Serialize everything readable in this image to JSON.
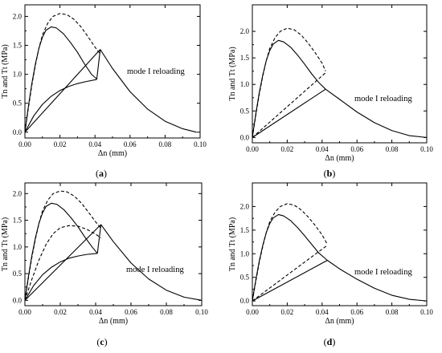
{
  "figure": {
    "caption_labels": [
      "(a)",
      "(b)",
      "(c)",
      "(d)"
    ]
  },
  "chart_data": [
    {
      "type": "line",
      "panel": "(a)",
      "xlabel": "Δn (mm)",
      "ylabel": "Tn and Tt (MPa)",
      "xlim": [
        0,
        0.1
      ],
      "ylim": [
        -0.1,
        2.2
      ],
      "x_ticks": [
        "0.00",
        "0.02",
        "0.04",
        "0.06",
        "0.08",
        "0.10"
      ],
      "y_ticks": [
        "0.0",
        "0.5",
        "1.0",
        "1.5",
        "2.0"
      ],
      "annotation": "mode I reloading",
      "series": [
        {
          "style": "solid",
          "points": [
            [
              0,
              0
            ],
            [
              0.002,
              0.45
            ],
            [
              0.004,
              0.85
            ],
            [
              0.006,
              1.18
            ],
            [
              0.008,
              1.45
            ],
            [
              0.01,
              1.64
            ],
            [
              0.012,
              1.76
            ],
            [
              0.015,
              1.82
            ],
            [
              0.018,
              1.8
            ],
            [
              0.022,
              1.7
            ],
            [
              0.026,
              1.55
            ],
            [
              0.03,
              1.38
            ],
            [
              0.034,
              1.18
            ],
            [
              0.038,
              1.0
            ],
            [
              0.041,
              0.92
            ]
          ]
        },
        {
          "style": "solid",
          "points": [
            [
              0,
              0
            ],
            [
              0.005,
              0.28
            ],
            [
              0.01,
              0.48
            ],
            [
              0.015,
              0.62
            ],
            [
              0.02,
              0.72
            ],
            [
              0.025,
              0.79
            ],
            [
              0.03,
              0.84
            ],
            [
              0.035,
              0.875
            ],
            [
              0.041,
              0.91
            ]
          ]
        },
        {
          "style": "solid",
          "points": [
            [
              0,
              0
            ],
            [
              0.043,
              1.43
            ]
          ]
        },
        {
          "style": "solid",
          "points": [
            [
              0.041,
              0.91
            ],
            [
              0.043,
              1.43
            ]
          ]
        },
        {
          "style": "solid",
          "points": [
            [
              0.043,
              1.43
            ],
            [
              0.05,
              1.1
            ],
            [
              0.06,
              0.7
            ],
            [
              0.07,
              0.4
            ],
            [
              0.08,
              0.19
            ],
            [
              0.09,
              0.06
            ],
            [
              0.098,
              0.0
            ]
          ]
        },
        {
          "style": "dashed",
          "points": [
            [
              0,
              0
            ],
            [
              0.002,
              0.42
            ],
            [
              0.004,
              0.82
            ],
            [
              0.006,
              1.16
            ],
            [
              0.008,
              1.45
            ],
            [
              0.01,
              1.68
            ],
            [
              0.013,
              1.88
            ],
            [
              0.016,
              2.0
            ],
            [
              0.02,
              2.05
            ],
            [
              0.024,
              2.03
            ],
            [
              0.028,
              1.95
            ],
            [
              0.032,
              1.82
            ],
            [
              0.036,
              1.65
            ],
            [
              0.04,
              1.47
            ],
            [
              0.043,
              1.35
            ]
          ]
        }
      ]
    },
    {
      "type": "line",
      "panel": "(b)",
      "xlabel": "Δn (mm)",
      "ylabel": "Tn and Tt (MPa)",
      "xlim": [
        0,
        0.1
      ],
      "ylim": [
        -0.1,
        2.5
      ],
      "x_ticks": [
        "0.00",
        "0.02",
        "0.04",
        "0.06",
        "0.08",
        "0.10"
      ],
      "y_ticks": [
        "0.0",
        "0.5",
        "1.0",
        "1.5",
        "2.0"
      ],
      "annotation": "mode I reloading",
      "series": [
        {
          "style": "solid",
          "points": [
            [
              0,
              0
            ],
            [
              0.002,
              0.45
            ],
            [
              0.004,
              0.85
            ],
            [
              0.006,
              1.18
            ],
            [
              0.008,
              1.45
            ],
            [
              0.01,
              1.64
            ],
            [
              0.012,
              1.76
            ],
            [
              0.015,
              1.83
            ],
            [
              0.018,
              1.8
            ],
            [
              0.022,
              1.7
            ],
            [
              0.026,
              1.55
            ],
            [
              0.03,
              1.38
            ],
            [
              0.034,
              1.2
            ],
            [
              0.038,
              1.04
            ],
            [
              0.042,
              0.91
            ]
          ]
        },
        {
          "style": "solid",
          "points": [
            [
              0,
              0
            ],
            [
              0.042,
              0.91
            ]
          ]
        },
        {
          "style": "solid",
          "points": [
            [
              0.042,
              0.91
            ],
            [
              0.05,
              0.72
            ],
            [
              0.06,
              0.48
            ],
            [
              0.07,
              0.28
            ],
            [
              0.08,
              0.13
            ],
            [
              0.09,
              0.035
            ],
            [
              0.1,
              0.0
            ]
          ]
        },
        {
          "style": "dashed",
          "points": [
            [
              0,
              0
            ],
            [
              0.002,
              0.42
            ],
            [
              0.004,
              0.82
            ],
            [
              0.006,
              1.16
            ],
            [
              0.008,
              1.45
            ],
            [
              0.01,
              1.68
            ],
            [
              0.013,
              1.88
            ],
            [
              0.016,
              2.0
            ],
            [
              0.02,
              2.06
            ],
            [
              0.024,
              2.03
            ],
            [
              0.028,
              1.93
            ],
            [
              0.032,
              1.78
            ],
            [
              0.036,
              1.6
            ],
            [
              0.04,
              1.4
            ],
            [
              0.042,
              1.25
            ]
          ]
        },
        {
          "style": "dashed",
          "points": [
            [
              0,
              0
            ],
            [
              0.042,
              1.22
            ]
          ]
        }
      ]
    },
    {
      "type": "line",
      "panel": "(c)",
      "xlabel": "Δn (mm)",
      "ylabel": "Tn and Tt (MPa)",
      "xlim": [
        0,
        0.1
      ],
      "ylim": [
        -0.1,
        2.2
      ],
      "x_ticks": [
        "0.00",
        "0.02",
        "0.04",
        "0.06",
        "0.08",
        "0.10"
      ],
      "y_ticks": [
        "0.0",
        "0.5",
        "1.0",
        "1.5",
        "2.0"
      ],
      "annotation": "mode I reloading",
      "series": [
        {
          "style": "solid",
          "points": [
            [
              0,
              0
            ],
            [
              0.002,
              0.45
            ],
            [
              0.004,
              0.85
            ],
            [
              0.006,
              1.18
            ],
            [
              0.008,
              1.45
            ],
            [
              0.01,
              1.64
            ],
            [
              0.012,
              1.76
            ],
            [
              0.015,
              1.82
            ],
            [
              0.018,
              1.8
            ],
            [
              0.022,
              1.7
            ],
            [
              0.026,
              1.55
            ],
            [
              0.03,
              1.38
            ],
            [
              0.034,
              1.18
            ],
            [
              0.038,
              1.0
            ],
            [
              0.041,
              0.88
            ]
          ]
        },
        {
          "style": "solid",
          "points": [
            [
              0,
              0
            ],
            [
              0.005,
              0.28
            ],
            [
              0.01,
              0.48
            ],
            [
              0.015,
              0.62
            ],
            [
              0.02,
              0.72
            ],
            [
              0.025,
              0.79
            ],
            [
              0.03,
              0.83
            ],
            [
              0.035,
              0.86
            ],
            [
              0.041,
              0.88
            ]
          ]
        },
        {
          "style": "solid",
          "points": [
            [
              0,
              0
            ],
            [
              0.043,
              1.42
            ]
          ]
        },
        {
          "style": "solid",
          "points": [
            [
              0.041,
              0.88
            ],
            [
              0.043,
              1.42
            ]
          ]
        },
        {
          "style": "solid",
          "points": [
            [
              0.043,
              1.42
            ],
            [
              0.05,
              1.1
            ],
            [
              0.06,
              0.7
            ],
            [
              0.07,
              0.4
            ],
            [
              0.08,
              0.19
            ],
            [
              0.09,
              0.06
            ],
            [
              0.1,
              0.0
            ]
          ]
        },
        {
          "style": "dashed",
          "points": [
            [
              0,
              0
            ],
            [
              0.002,
              0.42
            ],
            [
              0.004,
              0.82
            ],
            [
              0.006,
              1.16
            ],
            [
              0.008,
              1.45
            ],
            [
              0.01,
              1.68
            ],
            [
              0.013,
              1.88
            ],
            [
              0.016,
              2.0
            ],
            [
              0.02,
              2.05
            ],
            [
              0.024,
              2.03
            ],
            [
              0.028,
              1.95
            ],
            [
              0.032,
              1.82
            ],
            [
              0.036,
              1.65
            ],
            [
              0.04,
              1.47
            ],
            [
              0.043,
              1.35
            ]
          ]
        },
        {
          "style": "dashed",
          "points": [
            [
              0,
              0
            ],
            [
              0.004,
              0.4
            ],
            [
              0.008,
              0.76
            ],
            [
              0.012,
              1.05
            ],
            [
              0.016,
              1.25
            ],
            [
              0.02,
              1.36
            ],
            [
              0.025,
              1.4
            ],
            [
              0.03,
              1.39
            ],
            [
              0.035,
              1.33
            ],
            [
              0.04,
              1.24
            ],
            [
              0.043,
              1.17
            ]
          ]
        }
      ]
    },
    {
      "type": "line",
      "panel": "(d)",
      "xlabel": "Δn (mm)",
      "ylabel": "Tn and Tt (MPa)",
      "xlim": [
        0,
        0.1
      ],
      "ylim": [
        -0.1,
        2.5
      ],
      "x_ticks": [
        "0.00",
        "0.02",
        "0.04",
        "0.06",
        "0.08",
        "0.10"
      ],
      "y_ticks": [
        "0.0",
        "0.5",
        "1.0",
        "1.5",
        "2.0"
      ],
      "annotation": "mode I reloading",
      "series": [
        {
          "style": "solid",
          "points": [
            [
              0,
              0
            ],
            [
              0.002,
              0.45
            ],
            [
              0.004,
              0.85
            ],
            [
              0.006,
              1.18
            ],
            [
              0.008,
              1.45
            ],
            [
              0.01,
              1.64
            ],
            [
              0.012,
              1.76
            ],
            [
              0.015,
              1.83
            ],
            [
              0.018,
              1.8
            ],
            [
              0.022,
              1.7
            ],
            [
              0.026,
              1.55
            ],
            [
              0.03,
              1.38
            ],
            [
              0.034,
              1.2
            ],
            [
              0.038,
              1.02
            ],
            [
              0.043,
              0.86
            ]
          ]
        },
        {
          "style": "solid",
          "points": [
            [
              0,
              0
            ],
            [
              0.043,
              0.86
            ]
          ]
        },
        {
          "style": "solid",
          "points": [
            [
              0.043,
              0.86
            ],
            [
              0.05,
              0.68
            ],
            [
              0.06,
              0.46
            ],
            [
              0.07,
              0.27
            ],
            [
              0.08,
              0.12
            ],
            [
              0.09,
              0.035
            ],
            [
              0.1,
              0.0
            ]
          ]
        },
        {
          "style": "dashed",
          "points": [
            [
              0,
              0
            ],
            [
              0.002,
              0.42
            ],
            [
              0.004,
              0.82
            ],
            [
              0.006,
              1.16
            ],
            [
              0.008,
              1.45
            ],
            [
              0.01,
              1.68
            ],
            [
              0.013,
              1.88
            ],
            [
              0.016,
              2.0
            ],
            [
              0.02,
              2.06
            ],
            [
              0.024,
              2.03
            ],
            [
              0.028,
              1.93
            ],
            [
              0.032,
              1.78
            ],
            [
              0.036,
              1.6
            ],
            [
              0.04,
              1.4
            ],
            [
              0.043,
              1.2
            ]
          ]
        },
        {
          "style": "dashed",
          "points": [
            [
              0,
              0
            ],
            [
              0.043,
              1.18
            ]
          ]
        }
      ]
    }
  ]
}
